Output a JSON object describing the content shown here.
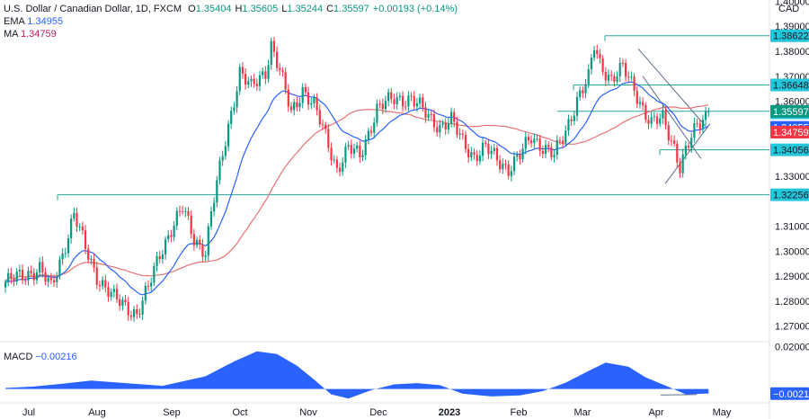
{
  "header": {
    "symbol": "U.S. Dollar / Canadian Dollar, 1D, FXCM",
    "ohlc": [
      {
        "k": "O",
        "v": "1.35404"
      },
      {
        "k": "H",
        "v": "1.35605"
      },
      {
        "k": "L",
        "v": "1.35244"
      },
      {
        "k": "C",
        "v": "1.35597"
      },
      {
        "k": "",
        "v": "+0.00193 (+0.14%)"
      }
    ],
    "ema_label": "EMA",
    "ema_value": "1.34955",
    "ma_label": "MA",
    "ma_value": "1.34759",
    "macd_label": "MACD",
    "macd_value": "−0.00216",
    "currency": "CAD"
  },
  "colors": {
    "up": "#089981",
    "down": "#f23645",
    "ema": "#2962ff",
    "ma": "#e57373",
    "level": "#26a69a",
    "histogram": "#2962ff",
    "axis_text": "#131722"
  },
  "chart_data": [
    {
      "type": "candlestick",
      "title": "U.S. Dollar / Canadian Dollar, 1D, FXCM",
      "ylim": [
        1.2645,
        1.4005
      ],
      "y_ticks": [
        "1.40000",
        "1.39000",
        "1.38000",
        "1.37000",
        "1.36000",
        "1.35000",
        "1.34000",
        "1.33000",
        "1.31000",
        "1.30000",
        "1.29000",
        "1.28000",
        "1.27000"
      ],
      "x_ticks": [
        "Jul",
        "Aug",
        "Sep",
        "Oct",
        "Nov",
        "Dec",
        "2023",
        "Feb",
        "Mar",
        "Apr",
        "May"
      ],
      "price_path": [
        [
          0,
          1.2875
        ],
        [
          12,
          1.293
        ],
        [
          16,
          1.285
        ],
        [
          20,
          1.299
        ],
        [
          24,
          1.315
        ],
        [
          28,
          1.301
        ],
        [
          32,
          1.29
        ],
        [
          38,
          1.281
        ],
        [
          46,
          1.275
        ],
        [
          50,
          1.285
        ],
        [
          54,
          1.299
        ],
        [
          58,
          1.309
        ],
        [
          62,
          1.317
        ],
        [
          66,
          1.305
        ],
        [
          70,
          1.3
        ],
        [
          72,
          1.315
        ],
        [
          78,
          1.35
        ],
        [
          82,
          1.372
        ],
        [
          86,
          1.365
        ],
        [
          91,
          1.372
        ],
        [
          93,
          1.383
        ],
        [
          96,
          1.372
        ],
        [
          100,
          1.355
        ],
        [
          104,
          1.365
        ],
        [
          108,
          1.358
        ],
        [
          112,
          1.346
        ],
        [
          116,
          1.333
        ],
        [
          120,
          1.341
        ],
        [
          124,
          1.338
        ],
        [
          130,
          1.357
        ],
        [
          136,
          1.361
        ],
        [
          142,
          1.361
        ],
        [
          148,
          1.354
        ],
        [
          152,
          1.35
        ],
        [
          156,
          1.352
        ],
        [
          160,
          1.344
        ],
        [
          164,
          1.338
        ],
        [
          168,
          1.341
        ],
        [
          172,
          1.337
        ],
        [
          176,
          1.333
        ],
        [
          180,
          1.338
        ],
        [
          184,
          1.346
        ],
        [
          188,
          1.342
        ],
        [
          192,
          1.338
        ],
        [
          196,
          1.348
        ],
        [
          200,
          1.361
        ],
        [
          204,
          1.369
        ],
        [
          206,
          1.382
        ],
        [
          208,
          1.375
        ],
        [
          212,
          1.369
        ],
        [
          216,
          1.373
        ],
        [
          220,
          1.365
        ],
        [
          224,
          1.355
        ],
        [
          226,
          1.351
        ],
        [
          230,
          1.353
        ],
        [
          234,
          1.342
        ],
        [
          236,
          1.334
        ],
        [
          238,
          1.34
        ],
        [
          242,
          1.35
        ],
        [
          246,
          1.3559
        ]
      ],
      "ema": {
        "name": "EMA",
        "value": 1.34955
      },
      "ma": {
        "name": "MA",
        "value": 1.34759
      },
      "levels": [
        {
          "label": "1.38622",
          "value": 1.38622
        },
        {
          "label": "1.36648",
          "value": 1.36648
        },
        {
          "label": "1.34056",
          "value": 1.34056
        },
        {
          "label": "1.32256",
          "value": 1.32256
        }
      ],
      "last_price": {
        "label": "1.35597",
        "value": 1.35597
      },
      "other_labels": [
        {
          "label": "1.35536",
          "value": 1.35536,
          "kind": "ema-level"
        },
        {
          "label": "1.34955",
          "value": 1.34955,
          "kind": "ema"
        },
        {
          "label": "1.34759",
          "value": 1.34759,
          "kind": "ma"
        }
      ]
    },
    {
      "type": "area",
      "title": "MACD",
      "ylim": [
        -0.0065,
        0.0215
      ],
      "y_ticks": [
        "0.02000"
      ],
      "current": {
        "label": "−0.00216",
        "value": -0.00216
      },
      "x": [
        0,
        10,
        20,
        30,
        40,
        55,
        70,
        80,
        88,
        95,
        102,
        108,
        114,
        120,
        128,
        136,
        144,
        152,
        160,
        170,
        180,
        188,
        196,
        204,
        210,
        218,
        224,
        232,
        238,
        246
      ],
      "values": [
        0.0005,
        0.0012,
        0.0025,
        0.004,
        0.003,
        0.0015,
        0.006,
        0.013,
        0.0178,
        0.0165,
        0.011,
        0.0045,
        -0.0025,
        -0.0045,
        -0.0005,
        0.0022,
        0.0028,
        0.0018,
        -0.0022,
        -0.0035,
        -0.003,
        -0.001,
        0.003,
        0.0085,
        0.0125,
        0.0105,
        0.0055,
        0.001,
        -0.0025,
        -0.0021
      ]
    }
  ]
}
